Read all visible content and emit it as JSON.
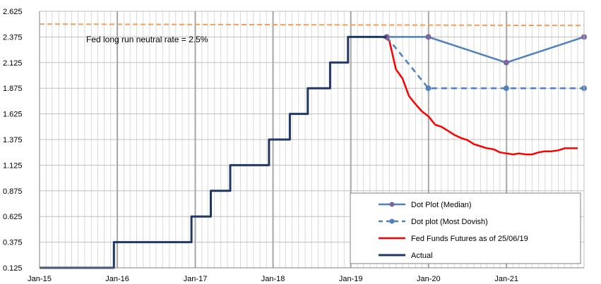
{
  "chart_data": {
    "type": "line",
    "title": "",
    "xlabel": "",
    "ylabel": "",
    "ylim": [
      0.125,
      2.625
    ],
    "xlim": [
      "2015-01-01",
      "2021-12-31"
    ],
    "y_ticks": [
      "0.125",
      "0.375",
      "0.625",
      "0.875",
      "1.125",
      "1.375",
      "1.625",
      "1.875",
      "2.125",
      "2.375",
      "2.625"
    ],
    "x_ticks": [
      {
        "label": "Jan-15",
        "date": "2015-01-01"
      },
      {
        "label": "Jan-16",
        "date": "2016-01-01"
      },
      {
        "label": "Jan-17",
        "date": "2017-01-01"
      },
      {
        "label": "Jan-18",
        "date": "2018-01-01"
      },
      {
        "label": "Jan-19",
        "date": "2019-01-01"
      },
      {
        "label": "Jan-20",
        "date": "2020-01-01"
      },
      {
        "label": "Jan-21",
        "date": "2021-01-01"
      }
    ],
    "grid": true,
    "reference_line": {
      "value": 2.5,
      "label": "Fed long run neutral rate = 2.5%",
      "color": "#f0a05a"
    },
    "series": [
      {
        "name": "Dot Plot (Median)",
        "color": "#4f81bd",
        "style": "solid-markers",
        "points": [
          [
            "2019-06-19",
            2.375
          ],
          [
            "2019-12-31",
            2.375
          ],
          [
            "2020-12-31",
            2.125
          ],
          [
            "2021-12-31",
            2.375
          ]
        ]
      },
      {
        "name": "Dot plot (Most Dovish)",
        "color": "#4f81bd",
        "style": "dashed-markers",
        "points": [
          [
            "2019-06-19",
            2.375
          ],
          [
            "2019-12-31",
            1.875
          ],
          [
            "2020-12-31",
            1.875
          ],
          [
            "2021-12-31",
            1.875
          ]
        ]
      },
      {
        "name": "Fed Funds Futures as of 25/06/19",
        "color": "#ff0000",
        "style": "solid",
        "points": [
          [
            "2019-06-01",
            2.375
          ],
          [
            "2019-07-01",
            2.34
          ],
          [
            "2019-08-01",
            2.06
          ],
          [
            "2019-09-01",
            1.97
          ],
          [
            "2019-10-01",
            1.8
          ],
          [
            "2019-11-01",
            1.72
          ],
          [
            "2019-12-01",
            1.65
          ],
          [
            "2020-01-01",
            1.6
          ],
          [
            "2020-02-01",
            1.52
          ],
          [
            "2020-03-01",
            1.5
          ],
          [
            "2020-04-01",
            1.46
          ],
          [
            "2020-05-01",
            1.42
          ],
          [
            "2020-06-01",
            1.39
          ],
          [
            "2020-07-01",
            1.37
          ],
          [
            "2020-08-01",
            1.33
          ],
          [
            "2020-09-01",
            1.31
          ],
          [
            "2020-10-01",
            1.29
          ],
          [
            "2020-11-01",
            1.28
          ],
          [
            "2020-12-01",
            1.25
          ],
          [
            "2021-01-01",
            1.24
          ],
          [
            "2021-02-01",
            1.23
          ],
          [
            "2021-03-01",
            1.24
          ],
          [
            "2021-04-01",
            1.23
          ],
          [
            "2021-05-01",
            1.23
          ],
          [
            "2021-06-01",
            1.25
          ],
          [
            "2021-07-01",
            1.26
          ],
          [
            "2021-08-01",
            1.26
          ],
          [
            "2021-09-01",
            1.27
          ],
          [
            "2021-10-01",
            1.29
          ],
          [
            "2021-11-01",
            1.29
          ],
          [
            "2021-12-01",
            1.29
          ]
        ]
      },
      {
        "name": "Actual",
        "color": "#1f3864",
        "style": "step",
        "points": [
          [
            "2015-01-01",
            0.125
          ],
          [
            "2015-12-16",
            0.375
          ],
          [
            "2016-12-14",
            0.625
          ],
          [
            "2017-03-15",
            0.875
          ],
          [
            "2017-06-14",
            1.125
          ],
          [
            "2017-12-13",
            1.375
          ],
          [
            "2018-03-21",
            1.625
          ],
          [
            "2018-06-13",
            1.875
          ],
          [
            "2018-09-26",
            2.125
          ],
          [
            "2018-12-19",
            2.375
          ],
          [
            "2019-06-19",
            2.375
          ]
        ]
      }
    ],
    "legend": {
      "placement": "bottom-right",
      "entries": [
        "Dot Plot (Median)",
        "Dot plot (Most Dovish)",
        "Fed Funds Futures as of 25/06/19",
        "Actual"
      ]
    }
  }
}
